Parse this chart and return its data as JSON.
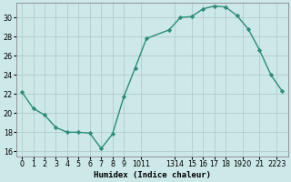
{
  "x": [
    0,
    1,
    2,
    3,
    4,
    5,
    6,
    7,
    8,
    9,
    10,
    11,
    13,
    14,
    15,
    16,
    17,
    18,
    19,
    20,
    21,
    22,
    23
  ],
  "y": [
    22.2,
    20.5,
    19.8,
    18.5,
    18.0,
    18.0,
    17.9,
    16.3,
    17.8,
    21.7,
    24.7,
    27.8,
    28.7,
    30.0,
    30.1,
    30.9,
    31.2,
    31.1,
    30.2,
    28.8,
    26.6,
    24.0,
    22.3
  ],
  "line_color": "#2e8b77",
  "marker": "D",
  "markersize": 2.2,
  "linewidth": 1.0,
  "xlabel": "Humidex (Indice chaleur)",
  "xlim": [
    -0.5,
    23.5
  ],
  "ylim": [
    15.5,
    31.5
  ],
  "yticks": [
    16,
    18,
    20,
    22,
    24,
    26,
    28,
    30
  ],
  "xtick_positions": [
    0,
    1,
    2,
    3,
    4,
    5,
    6,
    7,
    8,
    9,
    10.5,
    13.5,
    15,
    16,
    17,
    18,
    19.5,
    21,
    22.5
  ],
  "xtick_labels": [
    "0",
    "1",
    "2",
    "3",
    "4",
    "5",
    "6",
    "7",
    "8",
    "9",
    "1011",
    "1314",
    "15",
    "16",
    "17",
    "18",
    "1920",
    "21",
    "2223"
  ],
  "background_color": "#cce8e8",
  "grid_color": "#b0cccc",
  "axis_fontsize": 6.5,
  "tick_fontsize": 5.8
}
